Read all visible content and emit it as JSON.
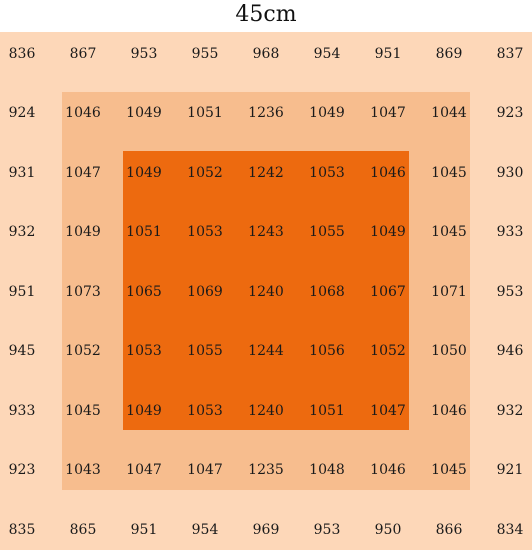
{
  "title": "45cm",
  "colors": {
    "outer": "#fdd7b8",
    "middle": "#f7bd8e",
    "inner": "#ed6a0f"
  },
  "grid": [
    [
      "836",
      "867",
      "953",
      "955",
      "968",
      "954",
      "951",
      "869",
      "837"
    ],
    [
      "924",
      "1046",
      "1049",
      "1051",
      "1236",
      "1049",
      "1047",
      "1044",
      "923"
    ],
    [
      "931",
      "1047",
      "1049",
      "1052",
      "1242",
      "1053",
      "1046",
      "1045",
      "930"
    ],
    [
      "932",
      "1049",
      "1051",
      "1053",
      "1243",
      "1055",
      "1049",
      "1045",
      "933"
    ],
    [
      "951",
      "1073",
      "1065",
      "1069",
      "1240",
      "1068",
      "1067",
      "1071",
      "953"
    ],
    [
      "945",
      "1052",
      "1053",
      "1055",
      "1244",
      "1056",
      "1052",
      "1050",
      "946"
    ],
    [
      "933",
      "1045",
      "1049",
      "1053",
      "1240",
      "1051",
      "1047",
      "1046",
      "932"
    ],
    [
      "923",
      "1043",
      "1047",
      "1047",
      "1235",
      "1048",
      "1046",
      "1045",
      "921"
    ],
    [
      "835",
      "865",
      "951",
      "954",
      "969",
      "953",
      "950",
      "866",
      "834"
    ]
  ]
}
